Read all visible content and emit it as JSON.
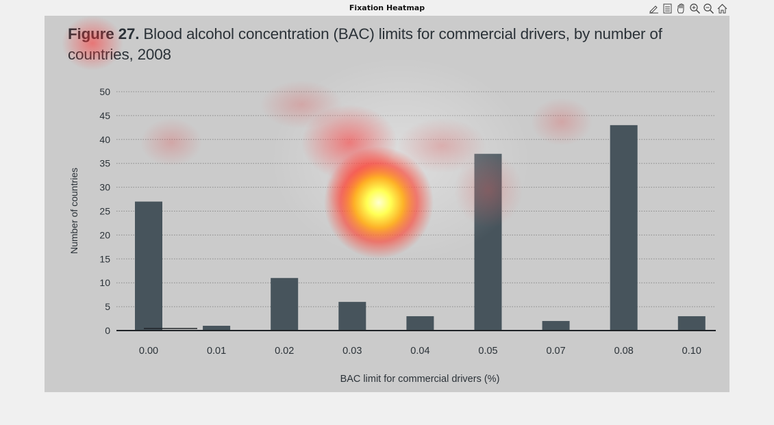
{
  "window": {
    "title": "Fixation Heatmap",
    "tools": [
      {
        "name": "edit-icon"
      },
      {
        "name": "page-icon"
      },
      {
        "name": "pan-hand-icon"
      },
      {
        "name": "zoom-in-icon"
      },
      {
        "name": "zoom-out-icon"
      },
      {
        "name": "home-icon"
      }
    ]
  },
  "figure": {
    "number_label": "Figure 27.",
    "caption": "Blood alcohol concentration (BAC) limits for commercial drivers, by number of countries, 2008"
  },
  "chart_data": {
    "type": "bar",
    "title": "Figure 27. Blood alcohol concentration (BAC) limits for commercial drivers, by number of countries, 2008",
    "categories": [
      "0.00",
      "0.01",
      "0.02",
      "0.03",
      "0.04",
      "0.05",
      "0.07",
      "0.08",
      "0.10"
    ],
    "values": [
      27,
      1,
      11,
      6,
      3,
      37,
      2,
      43,
      3
    ],
    "xlabel": "BAC limit for commercial drivers (%)",
    "ylabel": "Number of countries",
    "ylim": [
      0,
      50
    ],
    "yticks": [
      "0",
      "5",
      "10",
      "15",
      "20",
      "25",
      "30",
      "35",
      "40",
      "45",
      "50"
    ],
    "grid": true,
    "bar_color": "#47545c",
    "grid_color": "#8a8a8a"
  },
  "heatmap": {
    "hotspot_color": "#ffff66",
    "warm_color": "#ff3a2a"
  }
}
